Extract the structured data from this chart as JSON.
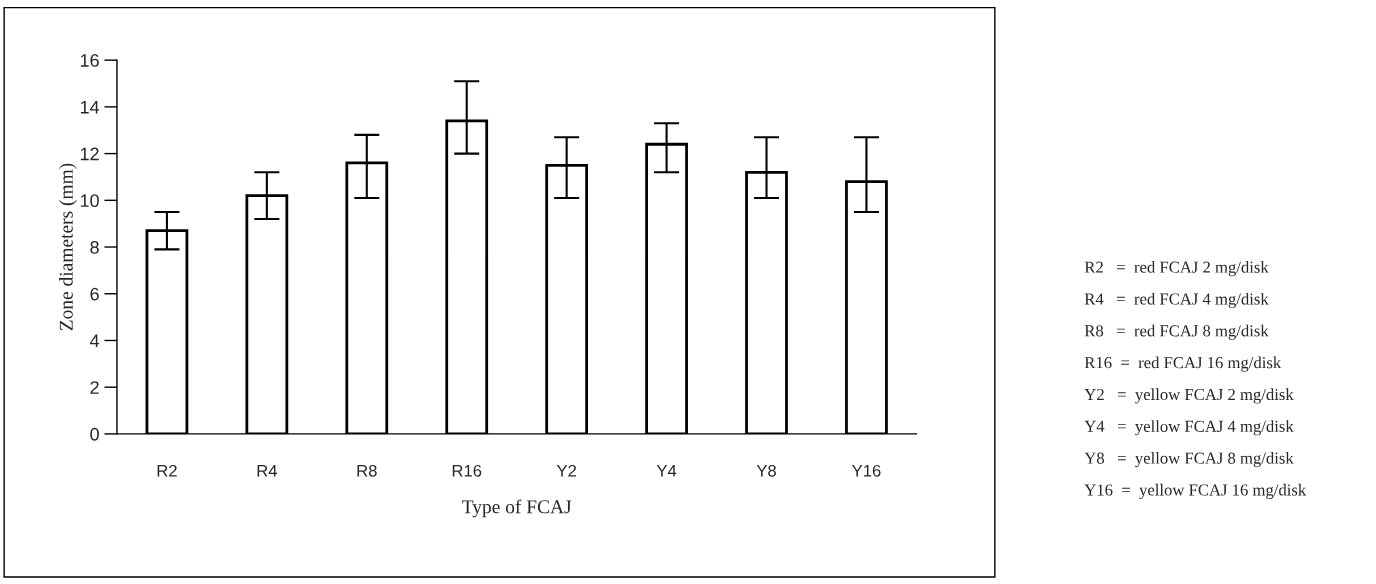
{
  "chart_data": {
    "type": "bar",
    "categories": [
      "R2",
      "R4",
      "R8",
      "R16",
      "Y2",
      "Y4",
      "Y8",
      "Y16"
    ],
    "values": [
      8.7,
      10.2,
      11.6,
      13.4,
      11.5,
      12.4,
      11.2,
      10.8
    ],
    "errors": [
      [
        7.9,
        9.5
      ],
      [
        9.2,
        11.2
      ],
      [
        10.1,
        12.8
      ],
      [
        12.0,
        15.1
      ],
      [
        10.1,
        12.7
      ],
      [
        11.2,
        13.3
      ],
      [
        10.1,
        12.7
      ],
      [
        9.5,
        12.7
      ]
    ],
    "color": "#ffffff",
    "xlabel": "Type of FCAJ",
    "ylabel": "Zone diameters (mm)",
    "ylim": [
      0,
      16
    ],
    "yticks": [
      0,
      2,
      4,
      6,
      8,
      10,
      12,
      14,
      16
    ],
    "grid": false,
    "legend": false,
    "annotations": [
      "R2   =  red FCAJ 2 mg/disk",
      "R4   =  red FCAJ 4 mg/disk",
      "R8   =  red FCAJ 8 mg/disk",
      "R16  =  red FCAJ 16 mg/disk",
      "Y2   =  yellow FCAJ 2 mg/disk",
      "Y4   =  yellow FCAJ 4 mg/disk",
      "Y8   =  yellow FCAJ 8 mg/disk",
      "Y16  =  yellow FCAJ 16 mg/disk"
    ]
  }
}
